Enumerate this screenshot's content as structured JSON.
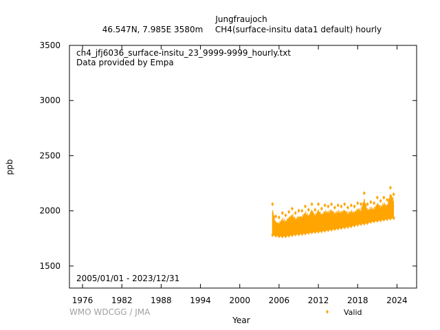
{
  "header": {
    "station": "Jungfraujoch",
    "location": "46.547N, 7.985E 3580m",
    "dataset": "CH4(surface-insitu data1 default) hourly"
  },
  "annotations": {
    "filename": "ch4_jfj6036_surface-insitu_23_9999-9999_hourly.txt",
    "provider": "Data provided by Empa",
    "period": "2005/01/01 - 2023/12/31"
  },
  "credit": "WMO WDCGG / JMA",
  "colors": {
    "series": "#ffa500",
    "axis": "#000000",
    "credit": "#a0a0a0"
  },
  "chart_data": {
    "type": "scatter",
    "title": "",
    "xlabel": "Year",
    "ylabel": "ppb",
    "xlim": [
      1974,
      2027
    ],
    "ylim": [
      1300,
      3500
    ],
    "xticks": [
      1976,
      1982,
      1988,
      1994,
      2000,
      2006,
      2012,
      2018,
      2024
    ],
    "yticks": [
      1500,
      2000,
      2500,
      3000,
      3500
    ],
    "grid": false,
    "legend": "bottom-right",
    "series": [
      {
        "name": "Valid",
        "color": "#ffa500",
        "marker": "diamond",
        "x": [
          2005.0,
          2005.5,
          2006.0,
          2006.5,
          2007.0,
          2007.5,
          2008.0,
          2008.5,
          2009.0,
          2009.5,
          2010.0,
          2010.5,
          2011.0,
          2011.5,
          2012.0,
          2012.5,
          2013.0,
          2013.5,
          2014.0,
          2014.5,
          2015.0,
          2015.5,
          2016.0,
          2016.5,
          2017.0,
          2017.5,
          2018.0,
          2018.5,
          2019.0,
          2019.5,
          2020.0,
          2020.5,
          2021.0,
          2021.5,
          2022.0,
          2022.5,
          2023.0,
          2023.5
        ],
        "y_min": [
          1780,
          1775,
          1770,
          1768,
          1770,
          1775,
          1780,
          1785,
          1788,
          1790,
          1795,
          1800,
          1805,
          1808,
          1812,
          1815,
          1820,
          1825,
          1830,
          1835,
          1840,
          1845,
          1850,
          1855,
          1860,
          1868,
          1875,
          1880,
          1885,
          1890,
          1900,
          1905,
          1910,
          1915,
          1920,
          1925,
          1930,
          1935
        ],
        "y_max": [
          2060,
          1950,
          1940,
          1980,
          1960,
          1990,
          2020,
          1980,
          2000,
          2000,
          2040,
          2010,
          2060,
          2010,
          2060,
          2020,
          2050,
          2040,
          2060,
          2030,
          2050,
          2040,
          2060,
          2030,
          2050,
          2040,
          2070,
          2060,
          2160,
          2060,
          2080,
          2070,
          2120,
          2090,
          2120,
          2100,
          2210,
          2150
        ]
      }
    ]
  }
}
